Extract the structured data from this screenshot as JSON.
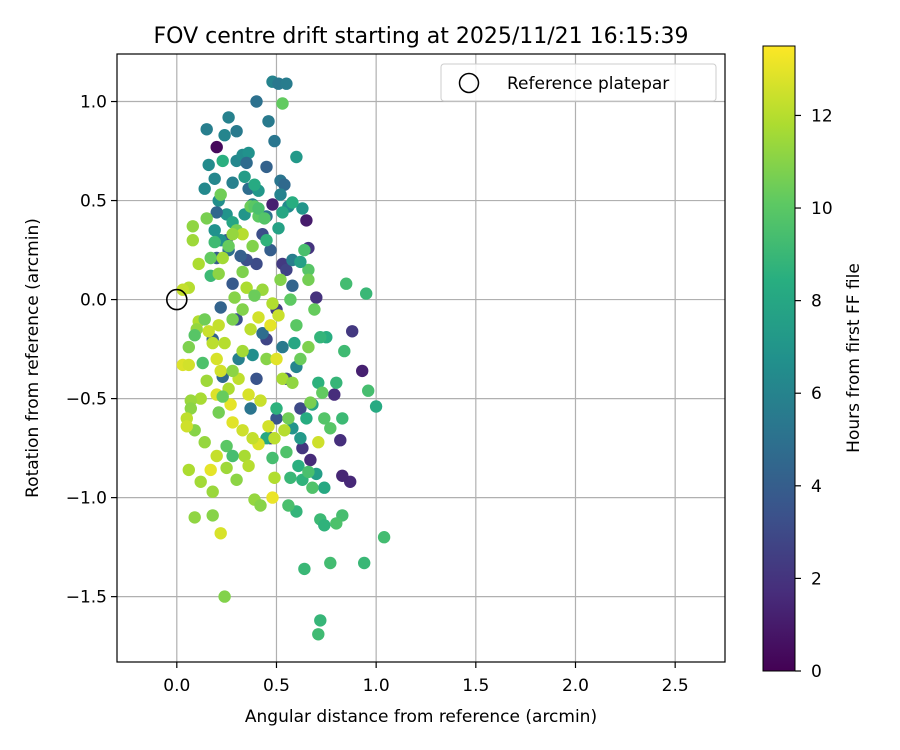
{
  "chart_data": {
    "type": "scatter",
    "title": "FOV centre drift starting at 2025/11/21 16:15:39",
    "xlabel": "Angular distance from reference (arcmin)",
    "ylabel": "Rotation from reference (arcmin)",
    "xlim": [
      -0.3,
      2.75
    ],
    "ylim": [
      -1.83,
      1.24
    ],
    "xticks": [
      0.0,
      0.5,
      1.0,
      1.5,
      2.0,
      2.5
    ],
    "xtick_labels": [
      "0.0",
      "0.5",
      "1.0",
      "1.5",
      "2.0",
      "2.5"
    ],
    "yticks": [
      -1.5,
      -1.0,
      -0.5,
      0.0,
      0.5,
      1.0
    ],
    "ytick_labels": [
      "−1.5",
      "−1.0",
      "−0.5",
      "0.0",
      "0.5",
      "1.0"
    ],
    "grid": true,
    "legend": {
      "placement": "top-right",
      "entries": [
        "Reference platepar"
      ]
    },
    "reference_point": {
      "x": 0.0,
      "y": 0.0
    },
    "colorbar": {
      "label": "Hours from first FF file",
      "range": [
        0,
        13.5
      ],
      "colormap": "viridis",
      "ticks": [
        0,
        2,
        4,
        6,
        8,
        10,
        12
      ],
      "tick_labels": [
        "0",
        "2",
        "4",
        "6",
        "8",
        "10",
        "12"
      ]
    },
    "points": [
      [
        0.2,
        0.77,
        0.3
      ],
      [
        0.48,
        0.48,
        1.2
      ],
      [
        0.65,
        0.4,
        1.0
      ],
      [
        0.93,
        -0.36,
        1.2
      ],
      [
        0.87,
        -0.92,
        1.5
      ],
      [
        0.83,
        -0.89,
        1.4
      ],
      [
        0.79,
        -0.48,
        1.7
      ],
      [
        0.82,
        -0.71,
        1.8
      ],
      [
        0.67,
        -0.81,
        1.6
      ],
      [
        0.66,
        0.26,
        2.0
      ],
      [
        0.7,
        0.01,
        1.9
      ],
      [
        0.88,
        -0.16,
        2.2
      ],
      [
        0.53,
        0.18,
        2.3
      ],
      [
        0.55,
        0.15,
        2.7
      ],
      [
        0.4,
        0.18,
        3.1
      ],
      [
        0.35,
        0.2,
        3.3
      ],
      [
        0.5,
        -0.05,
        2.5
      ],
      [
        0.45,
        -0.2,
        2.8
      ],
      [
        0.3,
        -0.1,
        3.4
      ],
      [
        0.25,
        0.3,
        3.7
      ],
      [
        0.43,
        0.33,
        3.2
      ],
      [
        0.47,
        0.25,
        4.0
      ],
      [
        0.2,
        0.21,
        3.9
      ],
      [
        0.18,
        -0.2,
        4.2
      ],
      [
        0.4,
        -0.4,
        3.5
      ],
      [
        0.62,
        -0.55,
        3.0
      ],
      [
        0.63,
        -0.75,
        2.1
      ],
      [
        0.47,
        -0.7,
        2.6
      ],
      [
        0.55,
        -0.4,
        2.9
      ],
      [
        0.5,
        -0.6,
        3.6
      ],
      [
        0.58,
        0.07,
        4.4
      ],
      [
        0.36,
        0.56,
        4.8
      ],
      [
        0.45,
        0.67,
        4.2
      ],
      [
        0.4,
        1.0,
        5.0
      ],
      [
        0.52,
        0.6,
        5.2
      ],
      [
        0.46,
        0.9,
        5.5
      ],
      [
        0.48,
        1.1,
        6.0
      ],
      [
        0.51,
        1.09,
        5.4
      ],
      [
        0.55,
        1.09,
        5.6
      ],
      [
        0.26,
        0.92,
        5.9
      ],
      [
        0.3,
        0.7,
        6.2
      ],
      [
        0.33,
        0.73,
        6.5
      ],
      [
        0.36,
        0.74,
        6.8
      ],
      [
        0.24,
        0.83,
        6.1
      ],
      [
        0.28,
        0.59,
        5.8
      ],
      [
        0.15,
        0.86,
        5.7
      ],
      [
        0.16,
        0.68,
        6.4
      ],
      [
        0.21,
        0.5,
        6.6
      ],
      [
        0.25,
        0.43,
        6.9
      ],
      [
        0.34,
        0.43,
        7.0
      ],
      [
        0.41,
        0.55,
        7.1
      ],
      [
        0.49,
        0.8,
        5.3
      ],
      [
        0.54,
        0.58,
        4.6
      ],
      [
        0.6,
        0.72,
        7.2
      ],
      [
        0.63,
        0.46,
        7.0
      ],
      [
        0.56,
        0.47,
        6.4
      ],
      [
        0.38,
        0.48,
        6.0
      ],
      [
        0.3,
        0.85,
        5.5
      ],
      [
        0.19,
        0.35,
        6.8
      ],
      [
        0.22,
        0.3,
        6.7
      ],
      [
        0.14,
        0.56,
        6.3
      ],
      [
        0.19,
        0.61,
        6.2
      ],
      [
        0.52,
        0.53,
        6.0
      ],
      [
        0.58,
        0.2,
        5.7
      ],
      [
        0.45,
        0.42,
        5.1
      ],
      [
        0.35,
        0.69,
        4.7
      ],
      [
        0.2,
        0.44,
        4.5
      ],
      [
        0.26,
        0.25,
        4.9
      ],
      [
        0.3,
        0.35,
        5.0
      ],
      [
        0.32,
        0.22,
        4.1
      ],
      [
        0.28,
        0.08,
        3.8
      ],
      [
        0.22,
        -0.04,
        4.3
      ],
      [
        0.23,
        -0.39,
        4.6
      ],
      [
        0.37,
        -0.55,
        5.2
      ],
      [
        0.53,
        -0.24,
        5.5
      ],
      [
        0.6,
        -0.34,
        6.1
      ],
      [
        0.31,
        -0.3,
        5.8
      ],
      [
        0.43,
        -0.17,
        4.8
      ],
      [
        0.38,
        -0.28,
        6.6
      ],
      [
        0.58,
        -0.65,
        6.9
      ],
      [
        0.62,
        -0.7,
        7.2
      ],
      [
        0.7,
        -0.88,
        7.5
      ],
      [
        0.74,
        -0.95,
        8.1
      ],
      [
        0.68,
        -0.53,
        7.8
      ],
      [
        0.65,
        -0.6,
        8.3
      ],
      [
        0.59,
        -0.22,
        8.0
      ],
      [
        0.71,
        -0.42,
        8.6
      ],
      [
        0.75,
        -0.19,
        8.4
      ],
      [
        0.72,
        -0.19,
        8.8
      ],
      [
        0.8,
        -0.42,
        8.9
      ],
      [
        0.83,
        -0.6,
        9.1
      ],
      [
        0.84,
        -0.26,
        9.2
      ],
      [
        0.85,
        0.08,
        9.3
      ],
      [
        0.95,
        0.03,
        9.0
      ],
      [
        0.96,
        -0.46,
        9.4
      ],
      [
        1.0,
        -0.54,
        8.2
      ],
      [
        0.72,
        -1.11,
        9.1
      ],
      [
        0.74,
        -1.14,
        8.7
      ],
      [
        0.77,
        -1.33,
        9.3
      ],
      [
        0.64,
        -1.36,
        9.0
      ],
      [
        0.72,
        -1.62,
        8.9
      ],
      [
        0.71,
        -1.69,
        9.2
      ],
      [
        0.94,
        -1.33,
        9.0
      ],
      [
        1.04,
        -1.2,
        9.3
      ],
      [
        0.83,
        -1.09,
        9.4
      ],
      [
        0.8,
        -1.13,
        9.6
      ],
      [
        0.61,
        -0.84,
        8.5
      ],
      [
        0.63,
        -0.91,
        8.7
      ],
      [
        0.6,
        -1.07,
        8.8
      ],
      [
        0.56,
        -1.04,
        9.5
      ],
      [
        0.55,
        -0.77,
        9.7
      ],
      [
        0.48,
        -0.8,
        9.4
      ],
      [
        0.64,
        0.25,
        9.5
      ],
      [
        0.66,
        0.15,
        9.9
      ],
      [
        0.74,
        -0.6,
        9.8
      ],
      [
        0.77,
        -0.65,
        9.9
      ],
      [
        0.68,
        -0.95,
        9.7
      ],
      [
        0.66,
        -0.87,
        9.5
      ],
      [
        0.57,
        -0.9,
        9.0
      ],
      [
        0.5,
        -0.55,
        8.6
      ],
      [
        0.45,
        -0.7,
        8.1
      ],
      [
        0.53,
        0.44,
        8.0
      ],
      [
        0.58,
        0.49,
        8.4
      ],
      [
        0.45,
        0.3,
        8.7
      ],
      [
        0.39,
        0.58,
        8.2
      ],
      [
        0.51,
        0.36,
        7.7
      ],
      [
        0.62,
        0.19,
        7.6
      ],
      [
        0.34,
        0.62,
        7.4
      ],
      [
        0.28,
        0.39,
        7.9
      ],
      [
        0.23,
        0.7,
        8.5
      ],
      [
        0.17,
        0.12,
        9.1
      ],
      [
        0.13,
        -0.32,
        9.6
      ],
      [
        0.53,
        0.99,
        10.2
      ],
      [
        0.41,
        0.42,
        10.1
      ],
      [
        0.37,
        0.47,
        10.4
      ],
      [
        0.3,
        0.35,
        10.6
      ],
      [
        0.38,
        0.27,
        10.9
      ],
      [
        0.26,
        0.27,
        10.3
      ],
      [
        0.33,
        0.14,
        10.8
      ],
      [
        0.29,
        0.01,
        11.0
      ],
      [
        0.08,
        0.37,
        11.2
      ],
      [
        0.15,
        0.41,
        10.7
      ],
      [
        0.08,
        0.3,
        11.5
      ],
      [
        0.11,
        0.18,
        11.8
      ],
      [
        0.06,
        0.06,
        12.0
      ],
      [
        0.03,
        0.05,
        12.3
      ],
      [
        0.11,
        -0.11,
        11.9
      ],
      [
        0.16,
        -0.16,
        12.4
      ],
      [
        0.2,
        -0.3,
        12.7
      ],
      [
        0.18,
        -0.22,
        12.1
      ],
      [
        0.15,
        -0.41,
        11.5
      ],
      [
        0.2,
        -0.48,
        12.8
      ],
      [
        0.27,
        -0.53,
        13.0
      ],
      [
        0.28,
        -0.62,
        12.9
      ],
      [
        0.22,
        -0.36,
        12.6
      ],
      [
        0.12,
        -0.5,
        11.7
      ],
      [
        0.07,
        -0.51,
        11.4
      ],
      [
        0.07,
        -0.55,
        11.1
      ],
      [
        0.09,
        -0.66,
        11.0
      ],
      [
        0.05,
        -0.6,
        12.2
      ],
      [
        0.05,
        -0.64,
        12.5
      ],
      [
        0.03,
        -0.33,
        12.8
      ],
      [
        0.06,
        -0.33,
        12.6
      ],
      [
        0.14,
        -0.72,
        11.3
      ],
      [
        0.12,
        -0.92,
        11.6
      ],
      [
        0.06,
        -0.86,
        11.8
      ],
      [
        0.17,
        -0.86,
        13.0
      ],
      [
        0.2,
        -0.79,
        12.3
      ],
      [
        0.18,
        -0.97,
        11.4
      ],
      [
        0.09,
        -1.1,
        11.2
      ],
      [
        0.18,
        -1.09,
        11.0
      ],
      [
        0.22,
        -1.18,
        12.7
      ],
      [
        0.24,
        -1.5,
        10.9
      ],
      [
        0.3,
        -0.91,
        11.1
      ],
      [
        0.25,
        -0.85,
        11.5
      ],
      [
        0.34,
        -0.79,
        11.7
      ],
      [
        0.36,
        -0.84,
        12.0
      ],
      [
        0.39,
        -1.01,
        11.3
      ],
      [
        0.42,
        -1.04,
        11.0
      ],
      [
        0.48,
        -1.0,
        13.1
      ],
      [
        0.49,
        -0.9,
        11.9
      ],
      [
        0.41,
        -0.73,
        12.8
      ],
      [
        0.38,
        -0.7,
        12.3
      ],
      [
        0.33,
        -0.66,
        12.5
      ],
      [
        0.46,
        -0.64,
        12.6
      ],
      [
        0.49,
        -0.7,
        12.1
      ],
      [
        0.54,
        -0.66,
        12.0
      ],
      [
        0.36,
        -0.48,
        12.7
      ],
      [
        0.42,
        -0.51,
        12.4
      ],
      [
        0.31,
        -0.4,
        12.2
      ],
      [
        0.26,
        -0.45,
        11.8
      ],
      [
        0.28,
        -0.36,
        11.1
      ],
      [
        0.33,
        -0.26,
        11.6
      ],
      [
        0.37,
        -0.15,
        12.1
      ],
      [
        0.41,
        -0.09,
        12.6
      ],
      [
        0.47,
        -0.13,
        13.0
      ],
      [
        0.51,
        -0.08,
        12.4
      ],
      [
        0.48,
        -0.02,
        11.9
      ],
      [
        0.43,
        0.05,
        11.4
      ],
      [
        0.45,
        -0.3,
        11.0
      ],
      [
        0.5,
        -0.3,
        12.9
      ],
      [
        0.53,
        -0.4,
        11.7
      ],
      [
        0.56,
        -0.6,
        10.5
      ],
      [
        0.58,
        -0.42,
        11.2
      ],
      [
        0.67,
        -0.52,
        10.7
      ],
      [
        0.73,
        -0.47,
        10.2
      ],
      [
        0.71,
        -0.72,
        12.5
      ],
      [
        0.62,
        -0.3,
        10.4
      ],
      [
        0.66,
        -0.24,
        10.8
      ],
      [
        0.6,
        -0.13,
        10.0
      ],
      [
        0.69,
        -0.05,
        10.3
      ],
      [
        0.66,
        0.1,
        10.6
      ],
      [
        0.57,
        0.0,
        10.1
      ],
      [
        0.52,
        0.1,
        10.9
      ],
      [
        0.24,
        -0.22,
        12.0
      ],
      [
        0.21,
        -0.13,
        12.3
      ],
      [
        0.28,
        -0.1,
        10.7
      ],
      [
        0.33,
        -0.05,
        10.9
      ],
      [
        0.14,
        -0.1,
        10.5
      ],
      [
        0.1,
        -0.15,
        11.3
      ],
      [
        0.06,
        -0.24,
        10.8
      ],
      [
        0.21,
        0.13,
        11.1
      ],
      [
        0.17,
        0.21,
        10.2
      ],
      [
        0.23,
        0.21,
        11.6
      ],
      [
        0.35,
        0.06,
        11.8
      ],
      [
        0.39,
        0.02,
        10.4
      ],
      [
        0.33,
        0.33,
        12.0
      ],
      [
        0.28,
        0.33,
        11.3
      ],
      [
        0.22,
        0.53,
        10.5
      ],
      [
        0.39,
        0.47,
        10.0
      ],
      [
        0.41,
        0.46,
        9.5
      ],
      [
        0.44,
        0.41,
        9.8
      ],
      [
        0.19,
        0.29,
        9.2
      ],
      [
        0.09,
        -0.18,
        9.9
      ],
      [
        0.23,
        -0.49,
        10.3
      ],
      [
        0.21,
        -0.57,
        10.6
      ],
      [
        0.25,
        -0.74,
        10.0
      ],
      [
        0.28,
        -0.79,
        9.4
      ]
    ]
  }
}
